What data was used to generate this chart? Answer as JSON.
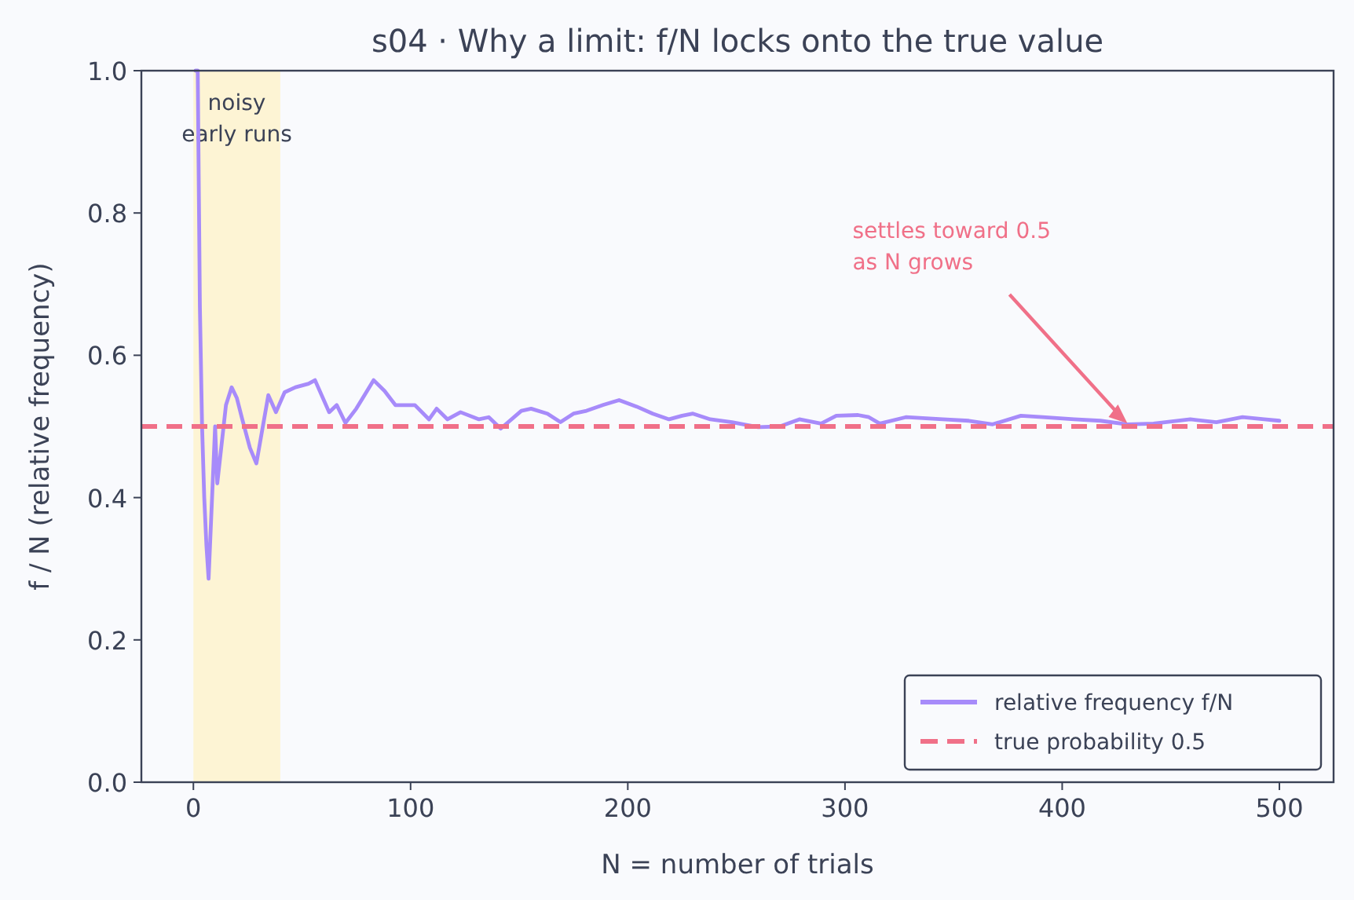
{
  "chart_data": {
    "type": "line",
    "title": "s04 · Why a limit: f/N locks onto the true value",
    "xlabel": "N = number of trials",
    "ylabel": "f / N  (relative frequency)",
    "xlim": [
      -23.95,
      524.95
    ],
    "xticks": [
      0,
      100,
      200,
      300,
      400,
      500
    ],
    "ylim": [
      0,
      1
    ],
    "yticks": [
      {
        "value": 0,
        "label": "0.0"
      },
      0.2,
      0.4,
      0.6,
      0.8,
      {
        "value": 1,
        "label": "1.0"
      }
    ],
    "legend": "bottom right",
    "grid": false,
    "series": [
      {
        "name": "relative frequency f/N",
        "color": "#a78bfa",
        "x": [
          1,
          2,
          3,
          4,
          5,
          6,
          7,
          10,
          11,
          15,
          17.6,
          20,
          22.5,
          26,
          29,
          34.5,
          38,
          42,
          47,
          53,
          56,
          62.5,
          66,
          70,
          75,
          83,
          88,
          93,
          102,
          108.5,
          112,
          117,
          123,
          131.5,
          136,
          141.5,
          151,
          155.5,
          163,
          169,
          175,
          181,
          188.5,
          196,
          204,
          211.5,
          219,
          225,
          230,
          238,
          248,
          260,
          270,
          279,
          289,
          296,
          306,
          311,
          316,
          328,
          345,
          357,
          368,
          381,
          391,
          405.5,
          417.6,
          430,
          442,
          459,
          471,
          483,
          493,
          500
        ],
        "values": [
          1,
          1,
          0.667,
          0.5,
          0.4,
          0.333,
          0.286,
          0.5,
          0.42,
          0.53,
          0.555,
          0.54,
          0.51,
          0.47,
          0.448,
          0.544,
          0.52,
          0.548,
          0.555,
          0.56,
          0.565,
          0.52,
          0.53,
          0.505,
          0.525,
          0.565,
          0.55,
          0.53,
          0.53,
          0.51,
          0.525,
          0.51,
          0.52,
          0.51,
          0.513,
          0.497,
          0.522,
          0.525,
          0.518,
          0.506,
          0.518,
          0.522,
          0.53,
          0.537,
          0.528,
          0.518,
          0.51,
          0.515,
          0.518,
          0.51,
          0.506,
          0.499,
          0.5,
          0.51,
          0.504,
          0.515,
          0.516,
          0.513,
          0.504,
          0.513,
          0.51,
          0.508,
          0.503,
          0.515,
          0.513,
          0.51,
          0.508,
          0.503,
          0.504,
          0.51,
          0.506,
          0.513,
          0.51,
          0.508
        ]
      }
    ],
    "ref_lines": [
      {
        "axis": "y",
        "value": 0.5,
        "label": "true probability 0.5",
        "color": "#f07088",
        "line_style": "dashed"
      }
    ],
    "bands": [
      {
        "axis": "x",
        "from": 0,
        "to": 40,
        "label": "noisy\nearly runs",
        "color": "#fdf3cf"
      }
    ],
    "annotations": [
      {
        "text": "settles toward 0.5\nas N grows",
        "x": 430,
        "y": 0.5
      }
    ]
  }
}
